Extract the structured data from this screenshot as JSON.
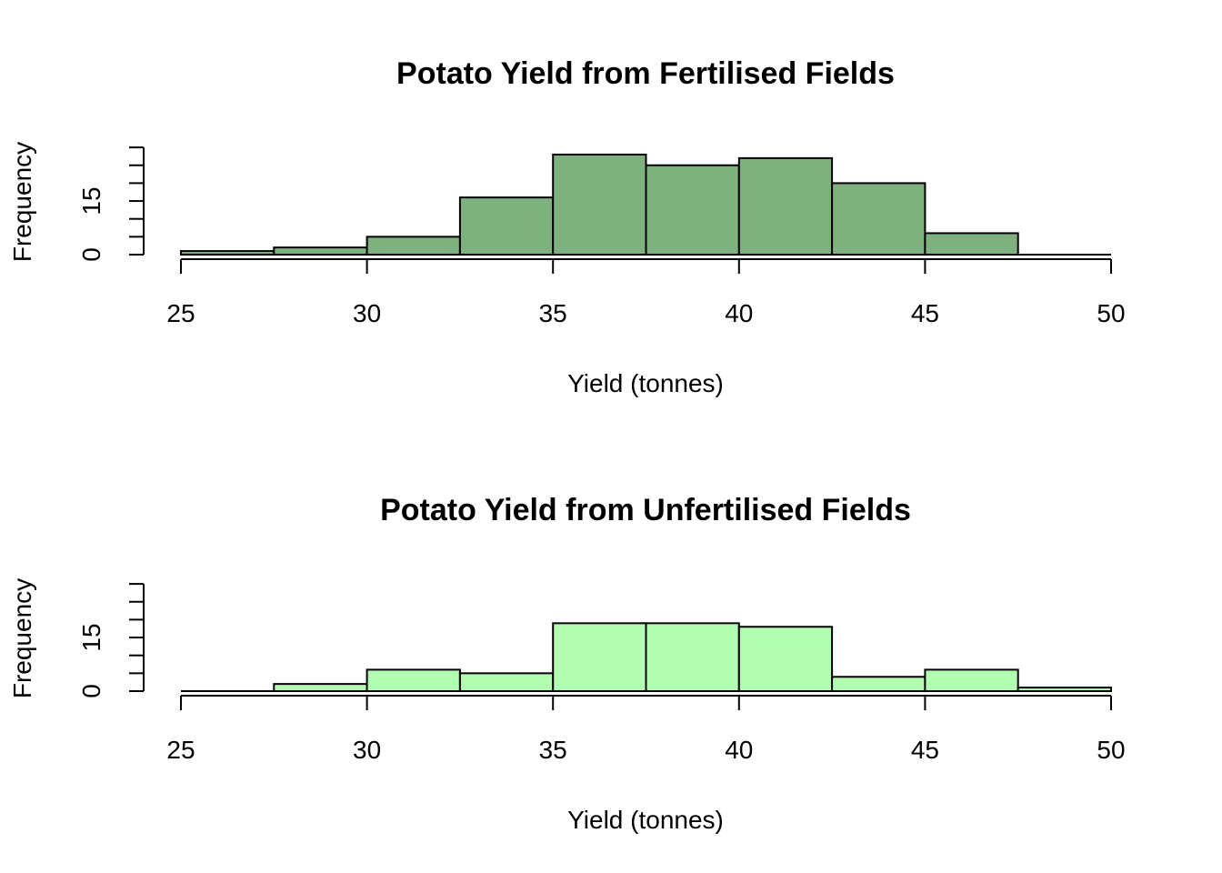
{
  "chart_data": [
    {
      "type": "bar",
      "title": "Potato Yield from Fertilised Fields",
      "xlabel": "Yield (tonnes)",
      "ylabel": "Frequency",
      "xlim": [
        25,
        50
      ],
      "ylim": [
        0,
        30
      ],
      "x_ticks": [
        25,
        30,
        35,
        40,
        45,
        50
      ],
      "y_tick_marks": [
        0,
        5,
        10,
        15,
        20,
        25,
        30
      ],
      "y_tick_labels": [
        0,
        15
      ],
      "bin_edges": [
        25,
        27.5,
        30,
        32.5,
        35,
        37.5,
        40,
        42.5,
        45,
        47.5,
        50
      ],
      "values": [
        1,
        2,
        5,
        16,
        28,
        25,
        27,
        20,
        6,
        0
      ],
      "color": "#7fb17e"
    },
    {
      "type": "bar",
      "title": "Potato Yield from Unfertilised Fields",
      "xlabel": "Yield (tonnes)",
      "ylabel": "Frequency",
      "xlim": [
        25,
        50
      ],
      "ylim": [
        0,
        30
      ],
      "x_ticks": [
        25,
        30,
        35,
        40,
        45,
        50
      ],
      "y_tick_marks": [
        0,
        5,
        10,
        15,
        20,
        25,
        30
      ],
      "y_tick_labels": [
        0,
        15
      ],
      "bin_edges": [
        25,
        27.5,
        30,
        32.5,
        35,
        37.5,
        40,
        42.5,
        45,
        47.5,
        50
      ],
      "values": [
        0,
        2,
        6,
        5,
        19,
        19,
        18,
        4,
        6,
        1
      ],
      "color": "#b3fdb3"
    }
  ]
}
